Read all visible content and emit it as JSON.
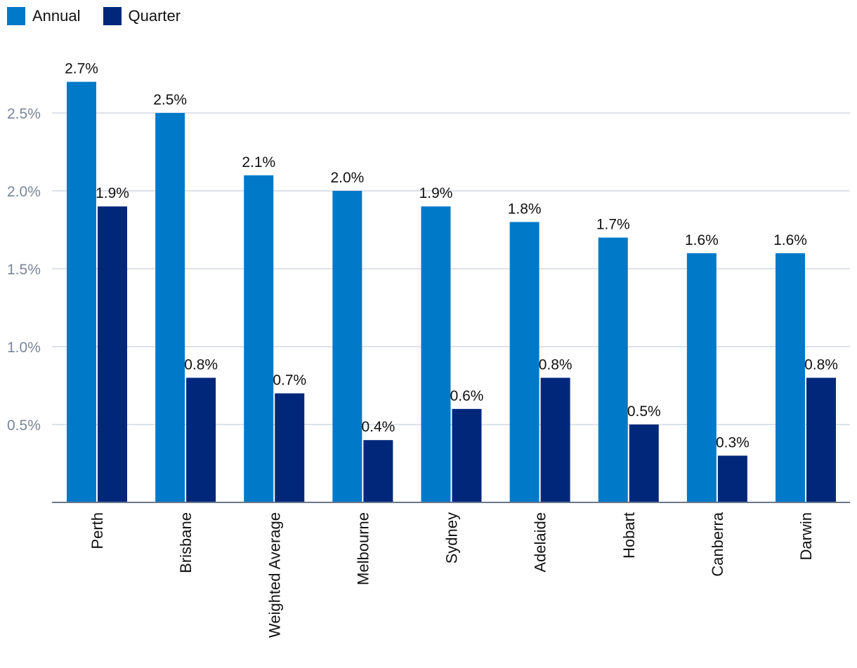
{
  "chart_data": {
    "type": "bar",
    "categories": [
      "Perth",
      "Brisbane",
      "Weighted Average",
      "Melbourne",
      "Sydney",
      "Adelaide",
      "Hobart",
      "Canberra",
      "Darwin"
    ],
    "series": [
      {
        "name": "Annual",
        "color": "#0079c8",
        "values": [
          2.7,
          2.5,
          2.1,
          2.0,
          1.9,
          1.8,
          1.7,
          1.6,
          1.6
        ]
      },
      {
        "name": "Quarter",
        "color": "#00277a",
        "values": [
          1.9,
          0.8,
          0.7,
          0.4,
          0.6,
          0.8,
          0.5,
          0.3,
          0.8
        ]
      }
    ],
    "value_format": "percent_1dp",
    "yticks": [
      0.5,
      1.0,
      1.5,
      2.0,
      2.5
    ],
    "ytick_labels": [
      "0.5%",
      "1.0%",
      "1.5%",
      "2.0%",
      "2.5%"
    ],
    "ylim": [
      0,
      2.8
    ],
    "grid": true,
    "legend_position": "top-left",
    "title": "",
    "xlabel": "",
    "ylabel": ""
  }
}
